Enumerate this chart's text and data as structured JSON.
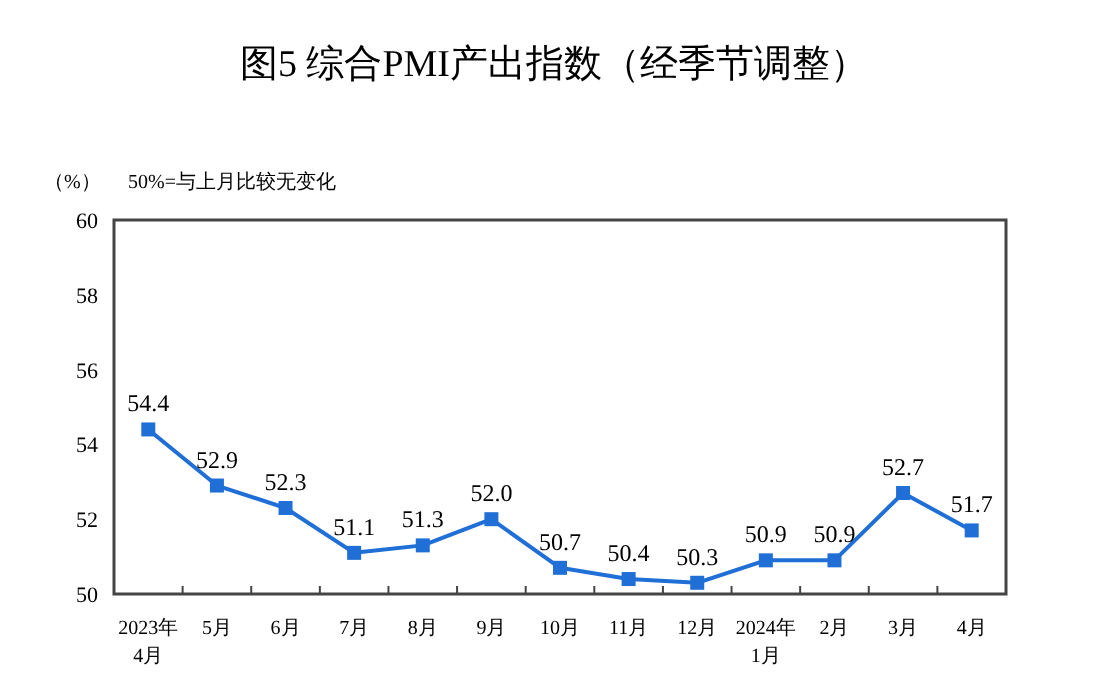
{
  "chart_data": {
    "type": "line",
    "title": "图5  综合PMI产出指数（经季节调整）",
    "annotations": [
      "（%）",
      "50%=与上月比较无变化"
    ],
    "categories": [
      "2023年\n4月",
      "5月",
      "6月",
      "7月",
      "8月",
      "9月",
      "10月",
      "11月",
      "12月",
      "2024年\n1月",
      "2月",
      "3月",
      "4月"
    ],
    "series": [
      {
        "color": "#1f6fd6",
        "values": [
          54.4,
          52.9,
          52.3,
          51.1,
          51.3,
          52.0,
          50.7,
          50.4,
          50.3,
          50.9,
          50.9,
          52.7,
          51.7
        ],
        "value_labels": [
          "54.4",
          "52.9",
          "52.3",
          "51.1",
          "51.3",
          "52.0",
          "50.7",
          "50.4",
          "50.3",
          "50.9",
          "50.9",
          "52.7",
          "51.7"
        ]
      }
    ],
    "ylim": [
      50,
      60
    ],
    "yticks": [
      50,
      52,
      54,
      56,
      58,
      60
    ],
    "marker": "square"
  }
}
